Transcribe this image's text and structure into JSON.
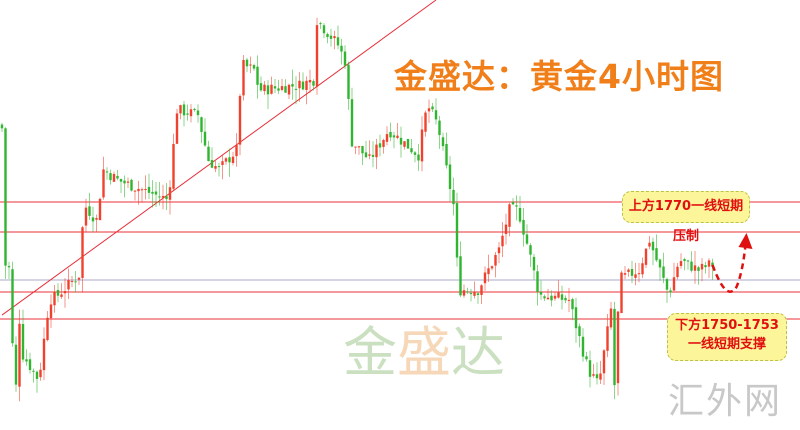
{
  "chart_data": {
    "type": "candlestick",
    "title": "金盛达：黄金4小时图",
    "ylim": [
      1704,
      1847.3
    ],
    "grid": false,
    "key_path": [
      [
        0,
        1805.7
      ],
      [
        1.5,
        1804
      ],
      [
        2,
        1759
      ],
      [
        3.5,
        1757.3
      ],
      [
        4.5,
        1707.3
      ],
      [
        6,
        1740.7
      ],
      [
        7,
        1729
      ],
      [
        11.5,
        1720.7
      ],
      [
        14.5,
        1747.3
      ],
      [
        17,
        1749
      ],
      [
        23,
        1755.7
      ],
      [
        24.5,
        1779
      ],
      [
        28,
        1774
      ],
      [
        30,
        1790.7
      ],
      [
        34,
        1787.3
      ],
      [
        48.5,
        1780.7
      ],
      [
        51,
        1810.7
      ],
      [
        57,
        1809
      ],
      [
        60,
        1794
      ],
      [
        63,
        1790.7
      ],
      [
        68,
        1797.3
      ],
      [
        69.5,
        1825.7
      ],
      [
        73,
        1824
      ],
      [
        74.5,
        1817.3
      ],
      [
        86,
        1819
      ],
      [
        90,
        1820.7
      ],
      [
        91,
        1840.7
      ],
      [
        97,
        1832.3
      ],
      [
        99.5,
        1825.7
      ],
      [
        100.5,
        1800.7
      ],
      [
        106,
        1794
      ],
      [
        111.5,
        1804
      ],
      [
        120,
        1795.7
      ],
      [
        122.5,
        1812.3
      ],
      [
        125.5,
        1805.7
      ],
      [
        130,
        1779
      ],
      [
        131.5,
        1750.7
      ],
      [
        137,
        1750.7
      ],
      [
        143,
        1764
      ],
      [
        146,
        1777.3
      ],
      [
        148.5,
        1777.3
      ],
      [
        151.5,
        1764
      ],
      [
        154.5,
        1749
      ],
      [
        163,
        1747.3
      ],
      [
        168.5,
        1724
      ],
      [
        171.5,
        1719
      ],
      [
        175,
        1744
      ],
      [
        176,
        1719
      ],
      [
        177.5,
        1754.3
      ],
      [
        183,
        1757.3
      ],
      [
        186,
        1767.3
      ],
      [
        191.5,
        1749
      ],
      [
        194.5,
        1760.7
      ],
      [
        200,
        1757.3
      ],
      [
        203,
        1759
      ]
    ],
    "horizontal_levels": [
      1780,
      1770,
      1754,
      1750,
      1741
    ],
    "trendline": [
      [
        0,
        1742.3
      ],
      [
        124,
        1847.3
      ]
    ],
    "colors": {
      "up": "#f0412e",
      "down": "#2fb52f",
      "level": "#e8303a",
      "neutral_level": "#a9a9c9",
      "trendline": "#e8303a",
      "arrow": "#e01010"
    },
    "annotations": {
      "resistance": "上方1770一线短期压制",
      "support_line1": "下方1750-1753",
      "support_line2": "一线短期支撑"
    }
  },
  "watermark": {
    "brand": [
      "金",
      "盛",
      "达"
    ],
    "site": "汇外网"
  }
}
